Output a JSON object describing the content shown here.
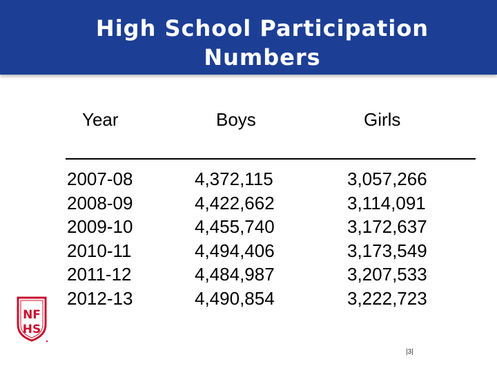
{
  "slide": {
    "title_line1": "High School Participation",
    "title_line2": "Numbers",
    "page_number": "|3|",
    "logo": {
      "icon": "nfhs-shield-logo",
      "text": "NFHS",
      "color": "#c8102e"
    },
    "colors": {
      "header_band": "#1c3f95",
      "title_text": "#ffffff"
    }
  },
  "table": {
    "headers": {
      "year": "Year",
      "boys": "Boys",
      "girls": "Girls"
    },
    "rows": [
      {
        "year": "2007-08",
        "boys": "4,372,115",
        "girls": "3,057,266"
      },
      {
        "year": "2008-09",
        "boys": "4,422,662",
        "girls": "3,114,091"
      },
      {
        "year": "2009-10",
        "boys": "4,455,740",
        "girls": "3,172,637"
      },
      {
        "year": "2010-11",
        "boys": "4,494,406",
        "girls": "3,173,549"
      },
      {
        "year": "2011-12",
        "boys": "4,484,987",
        "girls": "3,207,533"
      },
      {
        "year": "2012-13",
        "boys": "4,490,854",
        "girls": "3,222,723"
      }
    ]
  }
}
